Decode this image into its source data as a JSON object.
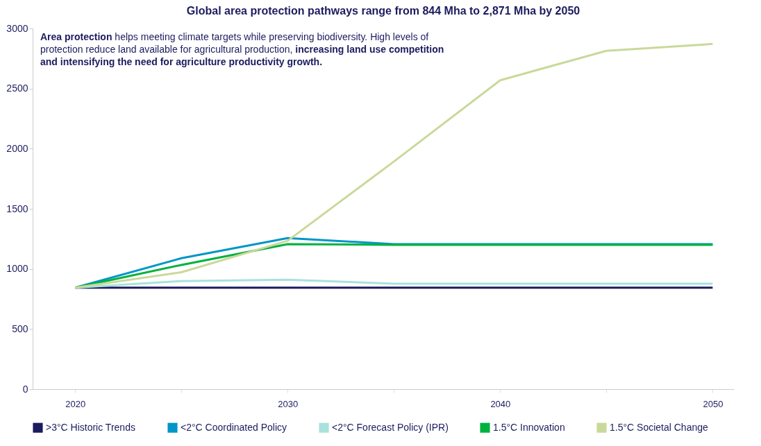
{
  "chart_data": {
    "type": "line",
    "title": "Global area protection pathways range from 844 Mha to 2,871 Mha by 2050",
    "annotations": [
      "Area protection",
      "helps meeting climate targets while preserving biodiversity. High levels of protection reduce land available for agricultural production,",
      "increasing land use competition and intensifying the need for agriculture productivity growth."
    ],
    "x": [
      2020,
      2025,
      2030,
      2035,
      2040,
      2045,
      2050
    ],
    "series": [
      {
        "name": ">3°C Historic Trends",
        "color": "#1b1b5f",
        "values": [
          844,
          844,
          844,
          844,
          844,
          844,
          844
        ]
      },
      {
        "name": "<2°C Coordinated Policy",
        "color": "#0096c8",
        "values": [
          844,
          1089,
          1256,
          1206,
          1206,
          1206,
          1206
        ]
      },
      {
        "name": "<2°C Forecast Policy (IPR)",
        "color": "#a8e2dd",
        "values": [
          844,
          899,
          910,
          877,
          877,
          877,
          877
        ]
      },
      {
        "name": "1.5°C Innovation",
        "color": "#00b140",
        "values": [
          844,
          1033,
          1206,
          1200,
          1200,
          1200,
          1200
        ]
      },
      {
        "name": "1.5°C Societal Change",
        "color": "#c9d99a",
        "values": [
          844,
          972,
          1234,
          1893,
          2569,
          2814,
          2871
        ]
      }
    ],
    "xlim": [
      2018,
      2051
    ],
    "xticks": [
      2020,
      {
        "value": 2025,
        "label": null
      },
      2030,
      {
        "value": 2035,
        "label": null
      },
      2040,
      {
        "value": 2045,
        "label": null
      },
      2050
    ],
    "ylim": [
      0,
      3000
    ],
    "yticks": [
      0,
      500,
      1000,
      1500,
      2000,
      2500,
      3000
    ],
    "grid": false,
    "legend": "bottom",
    "marker": "none",
    "line_style": "solid"
  }
}
